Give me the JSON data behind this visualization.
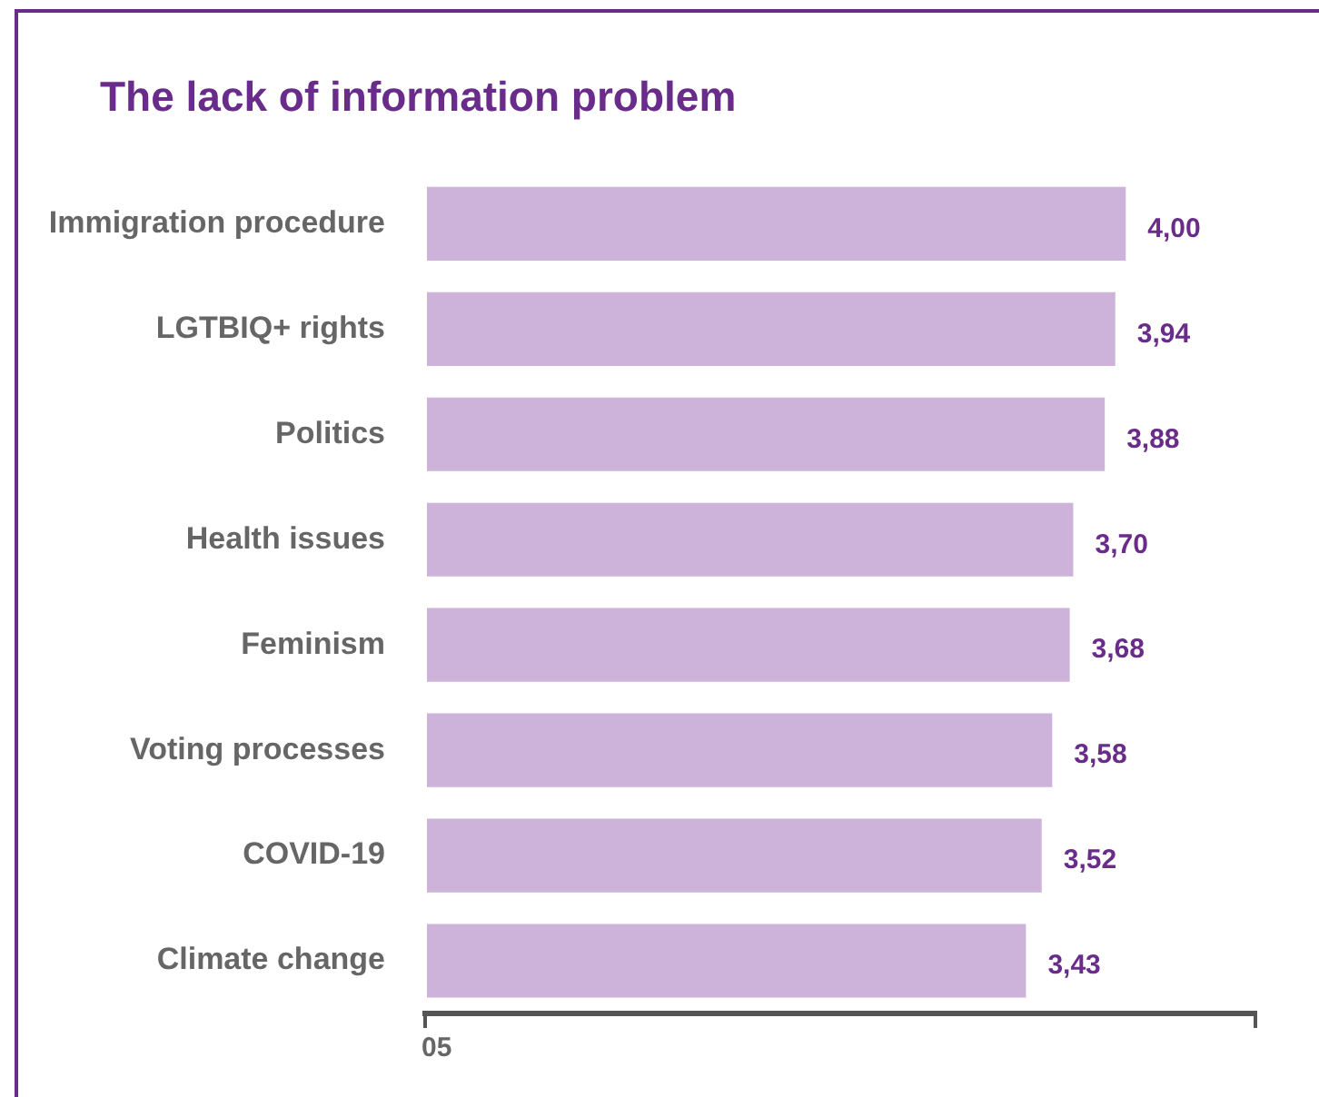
{
  "chart_data": {
    "type": "bar",
    "orientation": "horizontal",
    "title": "The lack of information problem",
    "categories": [
      "Immigration procedure",
      "LGTBIQ+ rights",
      "Politics",
      "Health issues",
      "Feminism",
      "Voting processes",
      "COVID-19",
      "Climate change"
    ],
    "values": [
      4.0,
      3.94,
      3.88,
      3.7,
      3.68,
      3.58,
      3.52,
      3.43
    ],
    "value_labels": [
      "4,00",
      "3,94",
      "3,88",
      "3,70",
      "3,68",
      "3,58",
      "3,52",
      "3,43"
    ],
    "color": "#cdb3d9",
    "xlim": [
      0,
      4.74
    ],
    "annotations": [
      "05"
    ],
    "grid": false,
    "legend": false
  }
}
